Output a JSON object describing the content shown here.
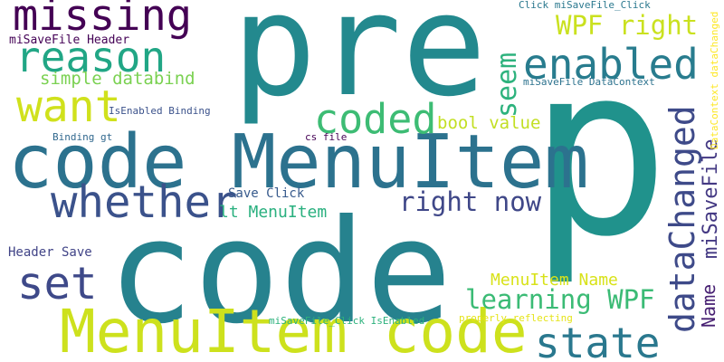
{
  "words": [
    {
      "text": "pre",
      "color": "#23898e"
    },
    {
      "text": "p",
      "color": "#20928c"
    },
    {
      "text": "code",
      "color": "#26828e"
    },
    {
      "text": "code MenuItem",
      "color": "#2c728e"
    },
    {
      "text": "MenuItem code",
      "color": "#cde11d"
    },
    {
      "text": "missing",
      "color": "#440154"
    },
    {
      "text": "reason",
      "color": "#21a685"
    },
    {
      "text": "enabled",
      "color": "#287c8e"
    },
    {
      "text": "want",
      "color": "#d0e11c"
    },
    {
      "text": "coded",
      "color": "#3dbc74"
    },
    {
      "text": "whether",
      "color": "#3b528b"
    },
    {
      "text": "set",
      "color": "#3e4989"
    },
    {
      "text": "state",
      "color": "#2a788e"
    },
    {
      "text": "dataChanged",
      "color": "#3e4a89"
    },
    {
      "text": "seem",
      "color": "#2db27d"
    },
    {
      "text": "WPF right",
      "color": "#cae11f"
    },
    {
      "text": "right now",
      "color": "#3f4788"
    },
    {
      "text": "learning WPF",
      "color": "#3bbb75"
    },
    {
      "text": "miSaveFile",
      "color": "#443983"
    },
    {
      "text": "Name",
      "color": "#482173"
    },
    {
      "text": "simple databind",
      "color": "#7ad151"
    },
    {
      "text": "bool value",
      "color": "#c2df23"
    },
    {
      "text": "lt MenuItem",
      "color": "#2ab07f"
    },
    {
      "text": "MenuItem Name",
      "color": "#d8e219"
    },
    {
      "text": "Save Click",
      "color": "#375a8c"
    },
    {
      "text": "Header Save",
      "color": "#414487"
    },
    {
      "text": "miSaveFile Header",
      "color": "#440256"
    },
    {
      "text": "Click miSaveFile_Click",
      "color": "#2a788e"
    },
    {
      "text": "IsEnabled Binding",
      "color": "#3b528b"
    },
    {
      "text": "miSaveFile DataContext",
      "color": "#2c728e"
    },
    {
      "text": "DataContext dataChanged",
      "color": "#fde725"
    },
    {
      "text": "Binding gt",
      "color": "#31688e"
    },
    {
      "text": "cs file",
      "color": "#440154"
    },
    {
      "text": "miSaveFile_Click IsEnabled",
      "color": "#2db27d"
    },
    {
      "text": "properly reflecting",
      "color": "#e5e419"
    }
  ]
}
